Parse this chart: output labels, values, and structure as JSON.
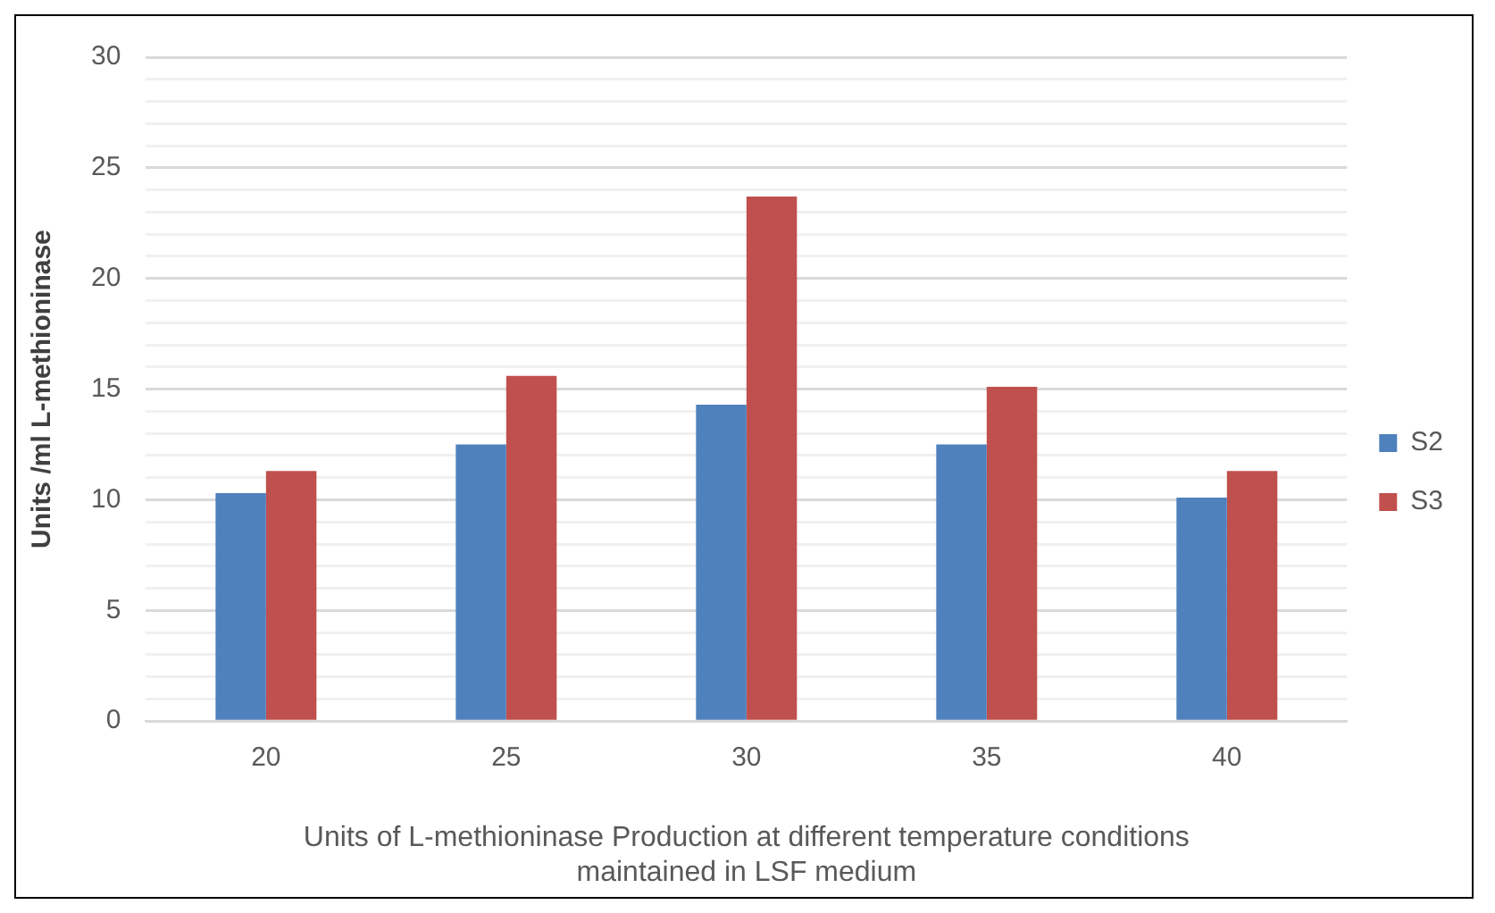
{
  "chart_data": {
    "type": "bar",
    "xlabel": "Units of L-methioninase Production at different temperature conditions maintained in LSF medium",
    "ylabel": "Units /ml L-methioninase",
    "categories": [
      "20",
      "25",
      "30",
      "35",
      "40"
    ],
    "series": [
      {
        "name": "S2",
        "color": "#4f81bd",
        "values": [
          10.3,
          12.5,
          14.3,
          12.5,
          10.1
        ]
      },
      {
        "name": "S3",
        "color": "#c0504d",
        "values": [
          11.3,
          15.6,
          23.7,
          15.1,
          11.3
        ]
      }
    ],
    "ylim": [
      0,
      30
    ],
    "yticks": [
      0,
      {
        "value": 1,
        "label": null
      },
      {
        "value": 2,
        "label": null
      },
      {
        "value": 3,
        "label": null
      },
      {
        "value": 4,
        "label": null
      },
      5,
      {
        "value": 6,
        "label": null
      },
      {
        "value": 7,
        "label": null
      },
      {
        "value": 8,
        "label": null
      },
      {
        "value": 9,
        "label": null
      },
      10,
      {
        "value": 11,
        "label": null
      },
      {
        "value": 12,
        "label": null
      },
      {
        "value": 13,
        "label": null
      },
      {
        "value": 14,
        "label": null
      },
      15,
      {
        "value": 16,
        "label": null
      },
      {
        "value": 17,
        "label": null
      },
      {
        "value": 18,
        "label": null
      },
      {
        "value": 19,
        "label": null
      },
      20,
      {
        "value": 21,
        "label": null
      },
      {
        "value": 22,
        "label": null
      },
      {
        "value": 23,
        "label": null
      },
      {
        "value": 24,
        "label": null
      },
      25,
      {
        "value": 26,
        "label": null
      },
      {
        "value": 27,
        "label": null
      },
      {
        "value": 28,
        "label": null
      },
      {
        "value": 29,
        "label": null
      },
      30
    ],
    "grid": "y",
    "legend": "right"
  }
}
